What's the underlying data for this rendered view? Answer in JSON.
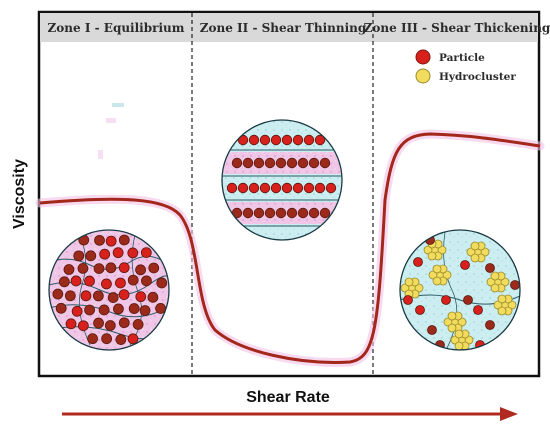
{
  "zones": [
    {
      "title": "Zone I - Equilibrium"
    },
    {
      "title": "Zone II - Shear Thinning"
    },
    {
      "title": "Zone III - Shear Thickening"
    }
  ],
  "legend": [
    {
      "label": "Particle",
      "color": "#d8201c"
    },
    {
      "label": "Hydrocluster",
      "color": "#f2dc5e"
    }
  ],
  "axes": {
    "x_label": "Shear Rate",
    "y_label": "Viscosity"
  },
  "colors": {
    "curve": "#a3271b",
    "header_bg": "#d9d9d9",
    "particle": "#d8201c",
    "particle_dark": "#9c2a1a",
    "hydrocluster": "#f2dc5e",
    "arrow": "#b02a20"
  }
}
